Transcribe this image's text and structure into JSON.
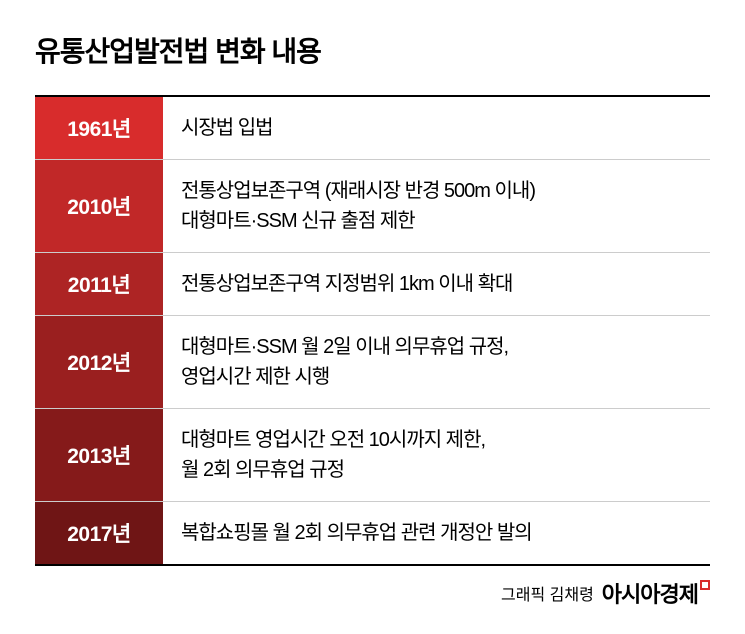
{
  "title": "유통산업발전법 변화 내용",
  "table": {
    "border_color": "#000000",
    "divider_color": "#cccccc",
    "year_text_color": "#ffffff",
    "content_text_color": "#000000",
    "rows": [
      {
        "year": "1961년",
        "bg_color": "#d82c2c",
        "content": "시장법 입법"
      },
      {
        "year": "2010년",
        "bg_color": "#c12828",
        "content": "전통상업보존구역 (재래시장 반경 500m 이내)\n대형마트·SSM 신규 출점 제한"
      },
      {
        "year": "2011년",
        "bg_color": "#ad2424",
        "content": "전통상업보존구역 지정범위 1km 이내 확대"
      },
      {
        "year": "2012년",
        "bg_color": "#9a1f1f",
        "content": "대형마트·SSM 월 2일 이내 의무휴업 규정,\n영업시간 제한 시행"
      },
      {
        "year": "2013년",
        "bg_color": "#851a1a",
        "content": "대형마트 영업시간 오전 10시까지 제한,\n월 2회 의무휴업 규정"
      },
      {
        "year": "2017년",
        "bg_color": "#6f1515",
        "content": "복합쇼핑몰 월 2회 의무휴업 관련 개정안 발의"
      }
    ]
  },
  "credit": {
    "author": "그래픽 김채령",
    "brand": "아시아경제",
    "brand_accent_color": "#d82c2c"
  }
}
